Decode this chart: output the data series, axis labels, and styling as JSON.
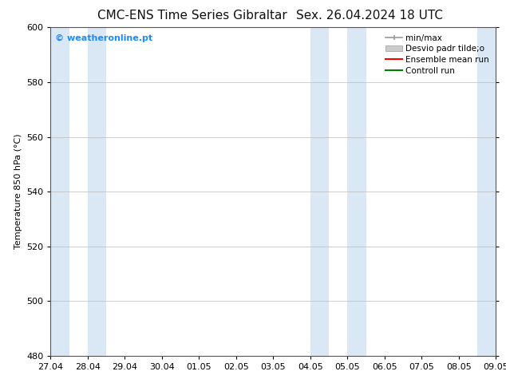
{
  "title_left": "CMC-ENS Time Series Gibraltar",
  "title_right": "Sex. 26.04.2024 18 UTC",
  "ylabel": "Temperature 850 hPa (°C)",
  "xlim_left": 0,
  "xlim_right": 12,
  "ylim_bottom": 480,
  "ylim_top": 600,
  "yticks": [
    480,
    500,
    520,
    540,
    560,
    580,
    600
  ],
  "xtick_labels": [
    "27.04",
    "28.04",
    "29.04",
    "30.04",
    "01.05",
    "02.05",
    "03.05",
    "04.05",
    "05.05",
    "06.05",
    "07.05",
    "08.05",
    "09.05"
  ],
  "shaded_bands": [
    {
      "x_start": 0.0,
      "x_end": 0.5,
      "color": "#dae8f5"
    },
    {
      "x_start": 1.0,
      "x_end": 1.5,
      "color": "#dae8f5"
    },
    {
      "x_start": 7.0,
      "x_end": 7.5,
      "color": "#dae8f5"
    },
    {
      "x_start": 8.0,
      "x_end": 8.5,
      "color": "#dae8f5"
    },
    {
      "x_start": 11.5,
      "x_end": 12.0,
      "color": "#dae8f5"
    }
  ],
  "watermark": "© weatheronline.pt",
  "watermark_color": "#1a8cff",
  "bg_color": "#ffffff",
  "plot_bg_color": "#ffffff",
  "legend_label_minmax": "min/max",
  "legend_label_desvio": "Desvio padr tilde;o",
  "legend_label_ensemble": "Ensemble mean run",
  "legend_label_controll": "Controll run",
  "legend_color_minmax": "#999999",
  "legend_color_desvio": "#cccccc",
  "legend_color_ensemble": "#ff0000",
  "legend_color_controll": "#008000",
  "grid_color": "#bbbbbb",
  "title_fontsize": 11,
  "label_fontsize": 8,
  "tick_fontsize": 8,
  "legend_fontsize": 7.5,
  "watermark_fontsize": 8
}
